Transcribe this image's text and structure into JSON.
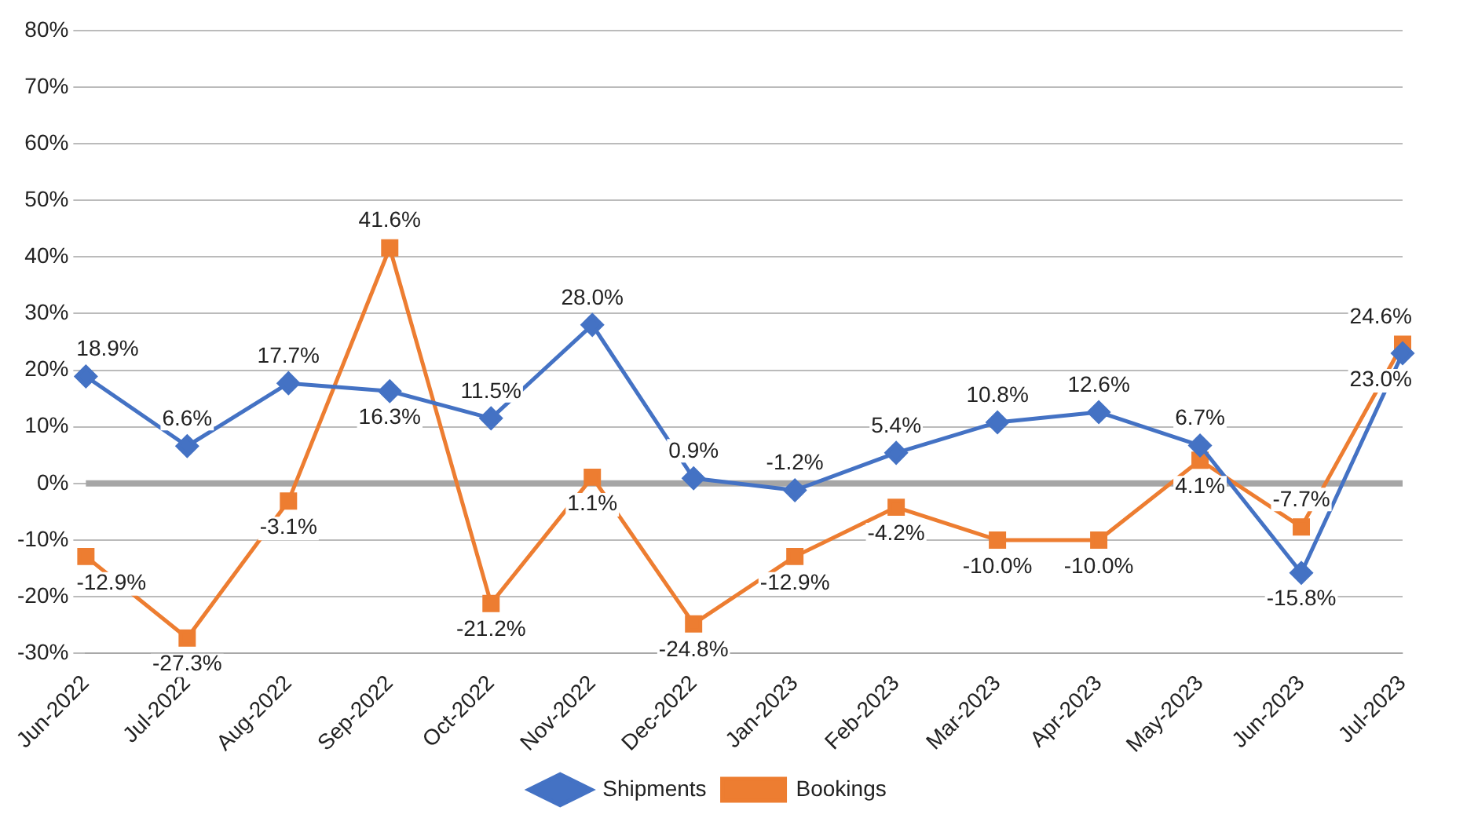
{
  "chart_data": {
    "type": "line",
    "categories": [
      "Jun-2022",
      "Jul-2022",
      "Aug-2022",
      "Sep-2022",
      "Oct-2022",
      "Nov-2022",
      "Dec-2022",
      "Jan-2023",
      "Feb-2023",
      "Mar-2023",
      "Apr-2023",
      "May-2023",
      "Jun-2023",
      "Jul-2023"
    ],
    "series": [
      {
        "name": "Shipments",
        "color": "#4472c4",
        "marker": "diamond",
        "values": [
          18.9,
          6.6,
          17.7,
          16.3,
          11.5,
          28.0,
          0.9,
          -1.2,
          5.4,
          10.8,
          12.6,
          6.7,
          -15.8,
          23.0
        ],
        "value_labels": [
          "18.9%",
          "6.6%",
          "17.7%",
          "16.3%",
          "11.5%",
          "28.0%",
          "0.9%",
          "-1.2%",
          "5.4%",
          "10.8%",
          "12.6%",
          "6.7%",
          "-15.8%",
          "23.0%"
        ]
      },
      {
        "name": "Bookings",
        "color": "#ed7d31",
        "marker": "square",
        "values": [
          -12.9,
          -27.3,
          -3.1,
          41.6,
          -21.2,
          1.1,
          -24.8,
          -12.9,
          -4.2,
          -10.0,
          -10.0,
          4.1,
          -7.7,
          24.6
        ],
        "value_labels": [
          "-12.9%",
          "-27.3%",
          "-3.1%",
          "41.6%",
          "-21.2%",
          "1.1%",
          "-24.8%",
          "-12.9%",
          "-4.2%",
          "-10.0%",
          "-10.0%",
          "4.1%",
          "-7.7%",
          "24.6%"
        ]
      }
    ],
    "ylim": [
      -30,
      80
    ],
    "yticks": [
      {
        "value": -30,
        "label": "-30%"
      },
      {
        "value": -20,
        "label": "-20%"
      },
      {
        "value": -10,
        "label": "-10%"
      },
      {
        "value": 0,
        "label": "0%"
      },
      {
        "value": 10,
        "label": "10%"
      },
      {
        "value": 20,
        "label": "20%"
      },
      {
        "value": 30,
        "label": "30%"
      },
      {
        "value": 40,
        "label": "40%"
      },
      {
        "value": 50,
        "label": "50%"
      },
      {
        "value": 60,
        "label": "60%"
      },
      {
        "value": 70,
        "label": "70%"
      },
      {
        "value": 80,
        "label": "80%"
      }
    ],
    "ref_lines": [
      {
        "axis": "y",
        "value": 0,
        "color": "#a6a6a6"
      }
    ],
    "grid": "y",
    "legend": "bottom"
  }
}
